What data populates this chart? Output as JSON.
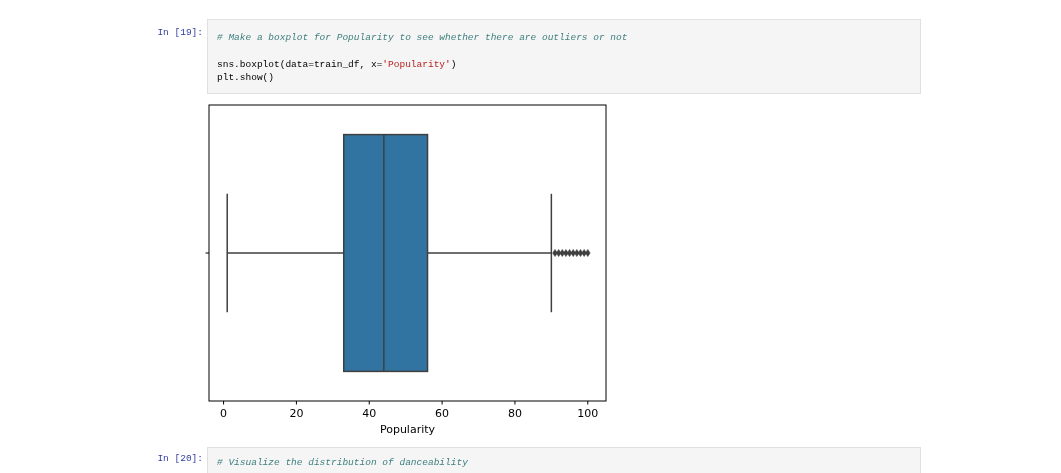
{
  "chart_data": {
    "type": "box",
    "orientation": "horizontal",
    "categories": [
      null
    ],
    "series": [
      {
        "color": "#3274a1",
        "boxes": [
          {
            "low": 1,
            "q1": 33,
            "median": 44,
            "q3": 56,
            "high": 90,
            "outliers": [
              91,
              92,
              93,
              94,
              95,
              96,
              97,
              98,
              99,
              100
            ]
          }
        ]
      }
    ],
    "xlim": [
      -4,
      105
    ],
    "xticks": [
      0,
      20,
      40,
      60,
      80,
      100
    ],
    "xlabel": "Popularity",
    "tick_labels": "x",
    "marker": "diamond",
    "annotations": [
      "In [19]:",
      "# Make a boxplot for Popularity to see whether there are outliers or not",
      "sns.boxplot(data=train_df, x='Popularity')",
      "plt.show()",
      "In [20]:",
      "# Visualize the distribution of danceability"
    ]
  }
}
